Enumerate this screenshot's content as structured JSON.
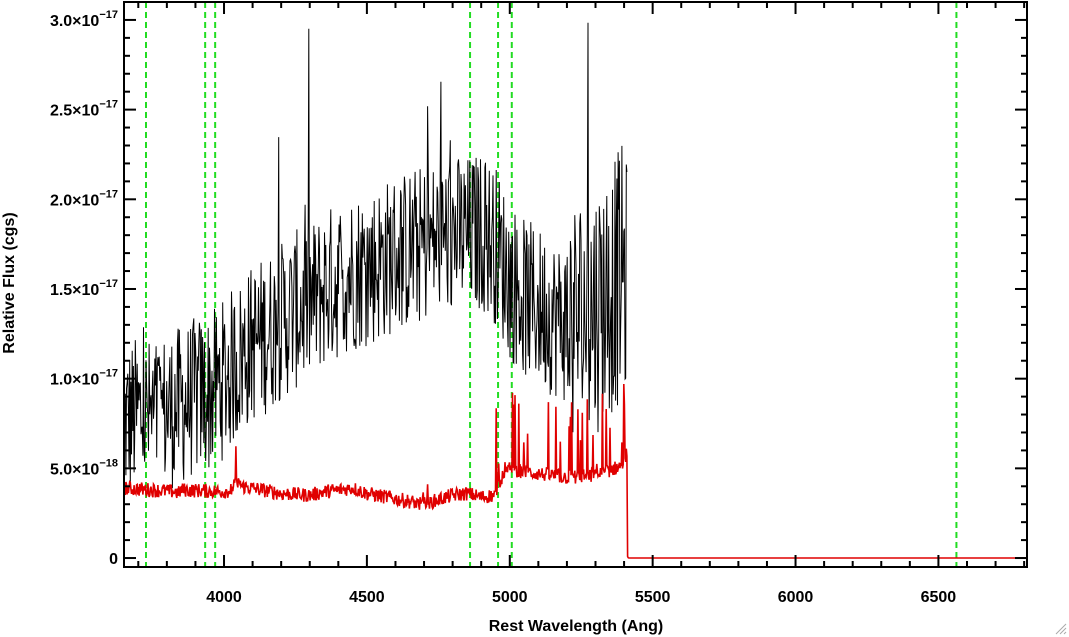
{
  "chart_data": {
    "type": "line",
    "title": "",
    "xlabel": "Rest Wavelength (Ang)",
    "ylabel": "Relative Flux (cgs)",
    "xlim": [
      3650,
      6810
    ],
    "ylim": [
      -5e-19,
      3.1e-17
    ],
    "grid": false,
    "legend": "none",
    "x_ticks": [
      {
        "value": 4000,
        "label": "4000"
      },
      {
        "value": 4500,
        "label": "4500"
      },
      {
        "value": 5000,
        "label": "5000"
      },
      {
        "value": 5500,
        "label": "5500"
      },
      {
        "value": 6000,
        "label": "6000"
      },
      {
        "value": 6500,
        "label": "6500"
      }
    ],
    "y_ticks": [
      {
        "value": 0,
        "mant": "0",
        "exp": ""
      },
      {
        "value": 5e-18,
        "mant": "5.0×10",
        "exp": "−18"
      },
      {
        "value": 1e-17,
        "mant": "1.0×10",
        "exp": "−17"
      },
      {
        "value": 1.5e-17,
        "mant": "1.5×10",
        "exp": "−17"
      },
      {
        "value": 2e-17,
        "mant": "2.0×10",
        "exp": "−17"
      },
      {
        "value": 2.5e-17,
        "mant": "2.5×10",
        "exp": "−17"
      },
      {
        "value": 3e-17,
        "mant": "3.0×10",
        "exp": "−17"
      }
    ],
    "reference_lines_x": [
      3727,
      3934,
      3969,
      4861,
      4959,
      5007,
      6563
    ],
    "series": [
      {
        "color": "#000000",
        "x": [
          3650,
          3700,
          3750,
          3800,
          3850,
          3900,
          3950,
          4000,
          4050,
          4100,
          4150,
          4200,
          4250,
          4300,
          4350,
          4400,
          4450,
          4500,
          4550,
          4600,
          4650,
          4700,
          4750,
          4800,
          4850,
          4900,
          4950,
          5000,
          5050,
          5100,
          5150,
          5200,
          5250,
          5300,
          5350,
          5400,
          5410
        ],
        "y": [
          7.5e-18,
          8e-18,
          7.8e-18,
          8.2e-18,
          8.5e-18,
          9e-18,
          9.2e-18,
          1e-17,
          1.1e-17,
          1.2e-17,
          1.25e-17,
          1.32e-17,
          1.38e-17,
          1.42e-17,
          1.5e-17,
          1.55e-17,
          1.6e-17,
          1.62e-17,
          1.65e-17,
          1.7e-17,
          1.72e-17,
          1.75e-17,
          1.78e-17,
          1.8e-17,
          1.8e-17,
          1.82e-17,
          1.75e-17,
          1.55e-17,
          1.45e-17,
          1.4e-17,
          1.35e-17,
          1.3e-17,
          1.35e-17,
          1.4e-17,
          1.5e-17,
          1.6e-17,
          1.5e-17
        ]
      },
      {
        "color": "#e00000",
        "x": [
          3650,
          3830,
          3840,
          3850,
          4000,
          4030,
          4040,
          4060,
          4100,
          4200,
          4300,
          4350,
          4400,
          4450,
          4500,
          4600,
          4700,
          4800,
          4850,
          4900,
          4950,
          4960,
          5000,
          5050,
          5100,
          5200,
          5300,
          5350,
          5400,
          5410,
          5412,
          5415,
          6810
        ],
        "y": [
          3.9e-18,
          3.7e-18,
          3.6e-18,
          3.8e-18,
          3.7e-18,
          3.8e-18,
          4.2e-18,
          4e-18,
          3.9e-18,
          3.6e-18,
          3.5e-18,
          3.7e-18,
          3.8e-18,
          3.9e-18,
          3.6e-18,
          3.3e-18,
          3e-18,
          3.5e-18,
          3.6e-18,
          3.4e-18,
          3.5e-18,
          4.2e-18,
          5e-18,
          4.8e-18,
          4.7e-18,
          4.5e-18,
          4.6e-18,
          4.9e-18,
          5.2e-18,
          6e-18,
          1e-19,
          0,
          0
        ]
      }
    ]
  }
}
